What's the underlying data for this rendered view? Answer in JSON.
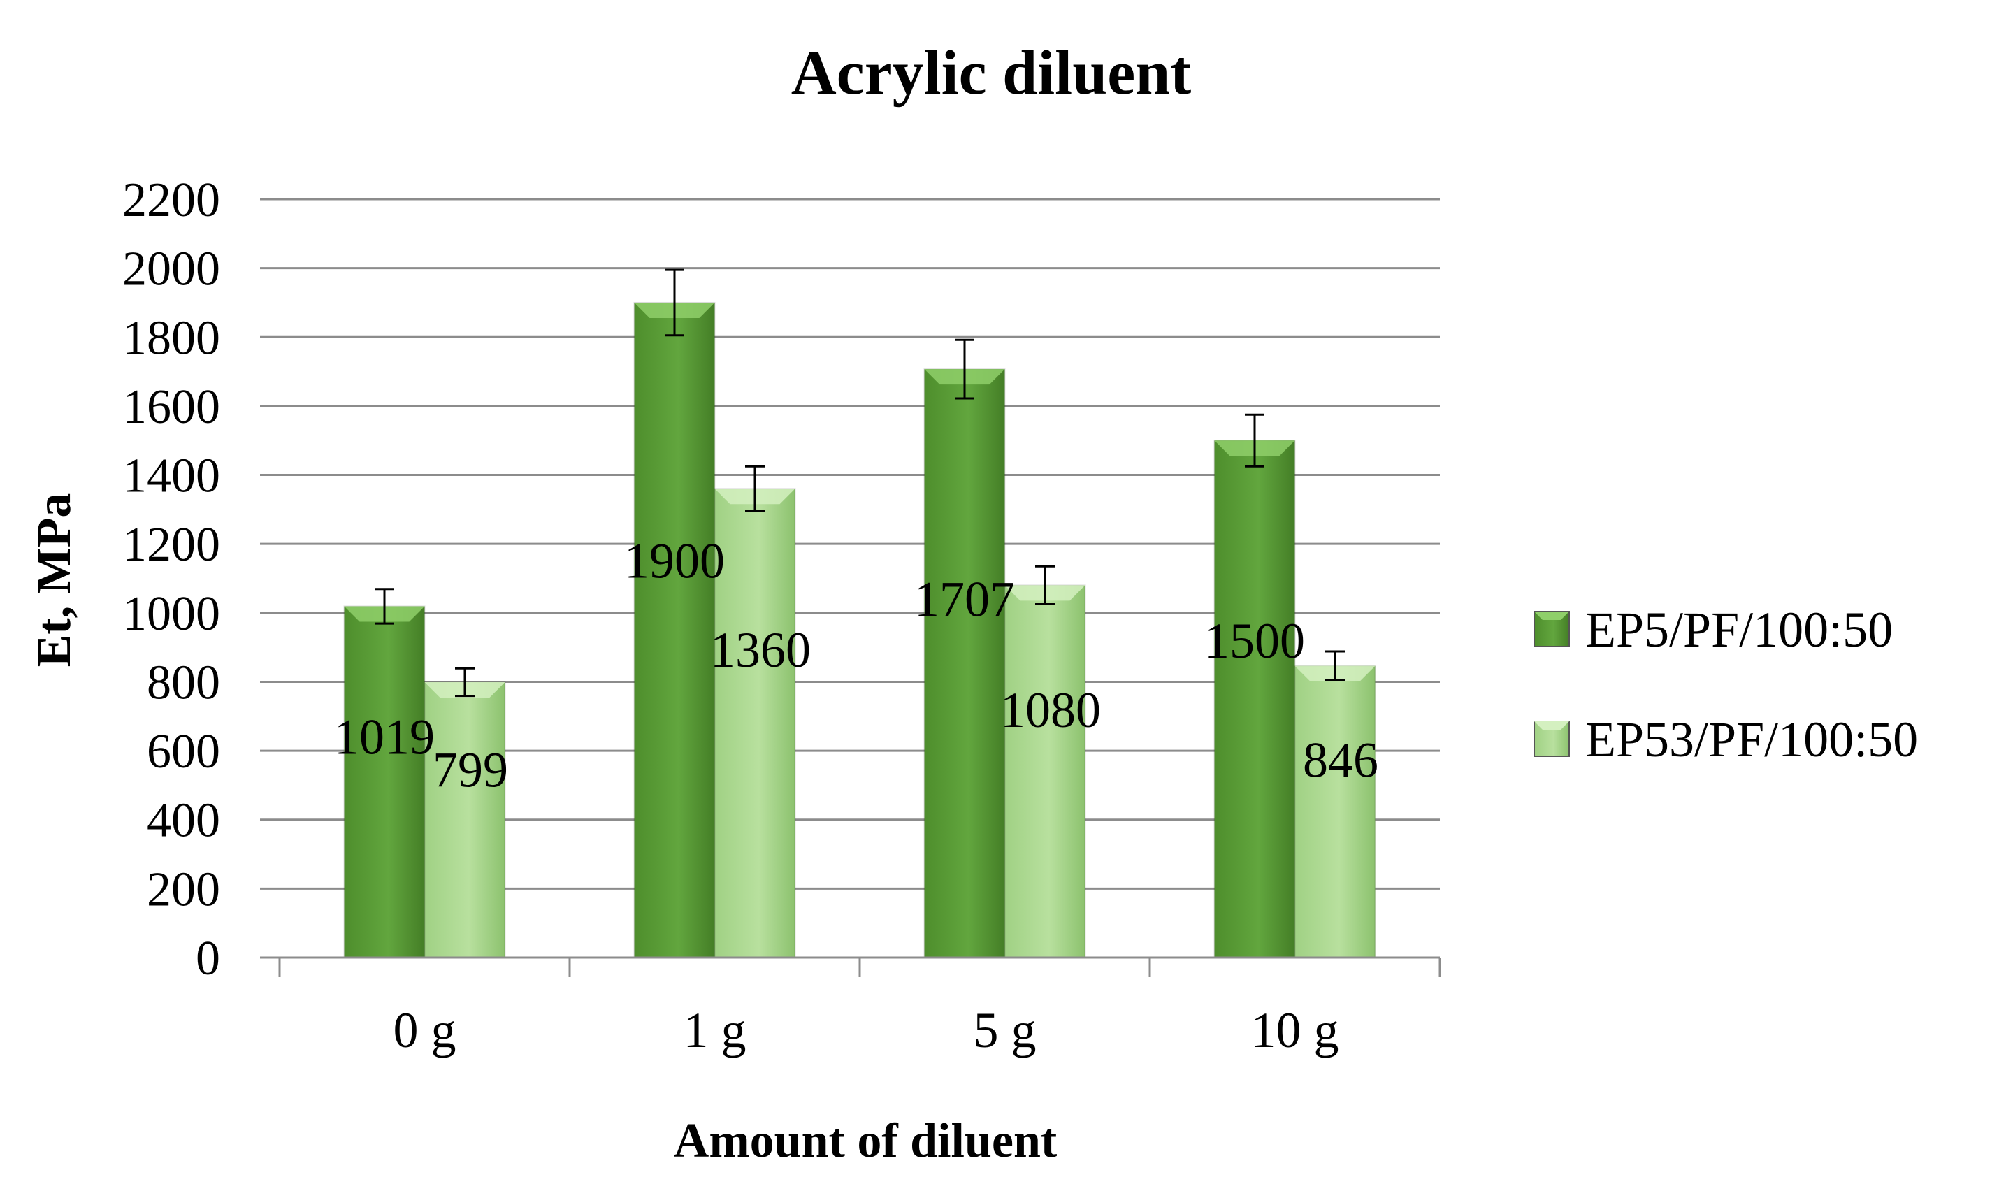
{
  "chart_data": {
    "type": "bar",
    "title": "Acrylic diluent",
    "xlabel": "Amount of diluent",
    "ylabel": "Et, MPa",
    "categories": [
      "0 g",
      "1 g",
      "5 g",
      "10 g"
    ],
    "ylim": [
      0,
      2200
    ],
    "yticks": [
      0,
      200,
      400,
      600,
      800,
      1000,
      1200,
      1400,
      1600,
      1800,
      2000,
      2200
    ],
    "grid": true,
    "legend_position": "right",
    "series": [
      {
        "name": "EP5/PF/100:50",
        "values": [
          1019,
          1900,
          1707,
          1500
        ],
        "labels": [
          "1019",
          "1900",
          "1707",
          "1500"
        ],
        "error": [
          50,
          95,
          85,
          75
        ],
        "color": "#5a9e3a"
      },
      {
        "name": "EP53/PF/100:50",
        "values": [
          799,
          1360,
          1080,
          846
        ],
        "labels": [
          "799",
          "1360",
          "1080",
          "846"
        ],
        "error": [
          40,
          65,
          55,
          42
        ],
        "color": "#a8d88a"
      }
    ]
  }
}
